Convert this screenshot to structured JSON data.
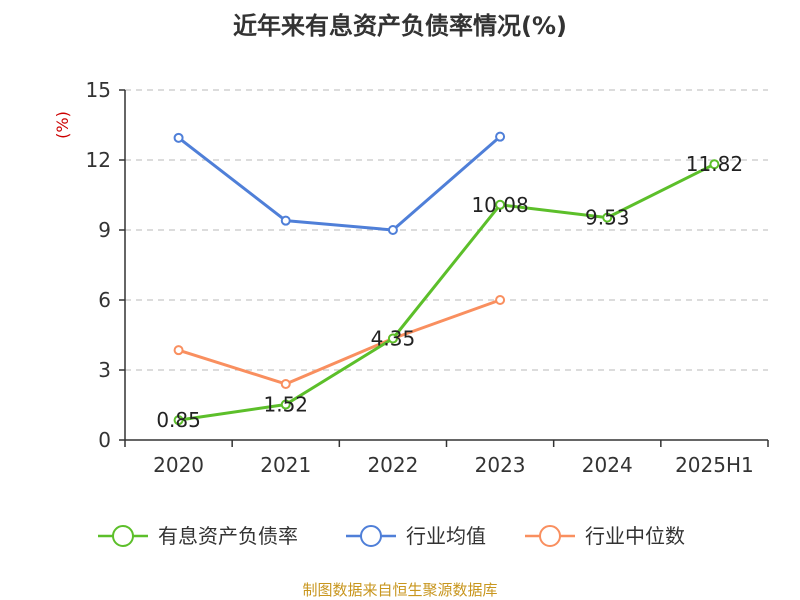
{
  "chart_data": {
    "type": "line",
    "title": "近年来有息资产负债率情况(%)",
    "ylabel": "(%)",
    "xlabel": "",
    "categories": [
      "2020",
      "2021",
      "2022",
      "2023",
      "2024",
      "2025H1"
    ],
    "ylim": [
      0,
      15
    ],
    "yticks": [
      0,
      3,
      6,
      9,
      12,
      15
    ],
    "grid": true,
    "legend_position": "bottom",
    "series": [
      {
        "name": "有息资产负债率",
        "color": "#5cbf2a",
        "values": [
          0.85,
          1.52,
          4.35,
          10.08,
          9.53,
          11.82
        ],
        "data_labels": [
          "0.85",
          "1.52",
          "4.35",
          "10.08",
          "9.53",
          "11.82"
        ]
      },
      {
        "name": "行业均值",
        "color": "#4f7fd8",
        "values": [
          12.95,
          9.4,
          9.0,
          13.0,
          null,
          null
        ]
      },
      {
        "name": "行业中位数",
        "color": "#f98f5f",
        "values": [
          3.85,
          2.4,
          4.35,
          6.0,
          null,
          null
        ]
      }
    ],
    "source": "制图数据来自恒生聚源数据库"
  }
}
